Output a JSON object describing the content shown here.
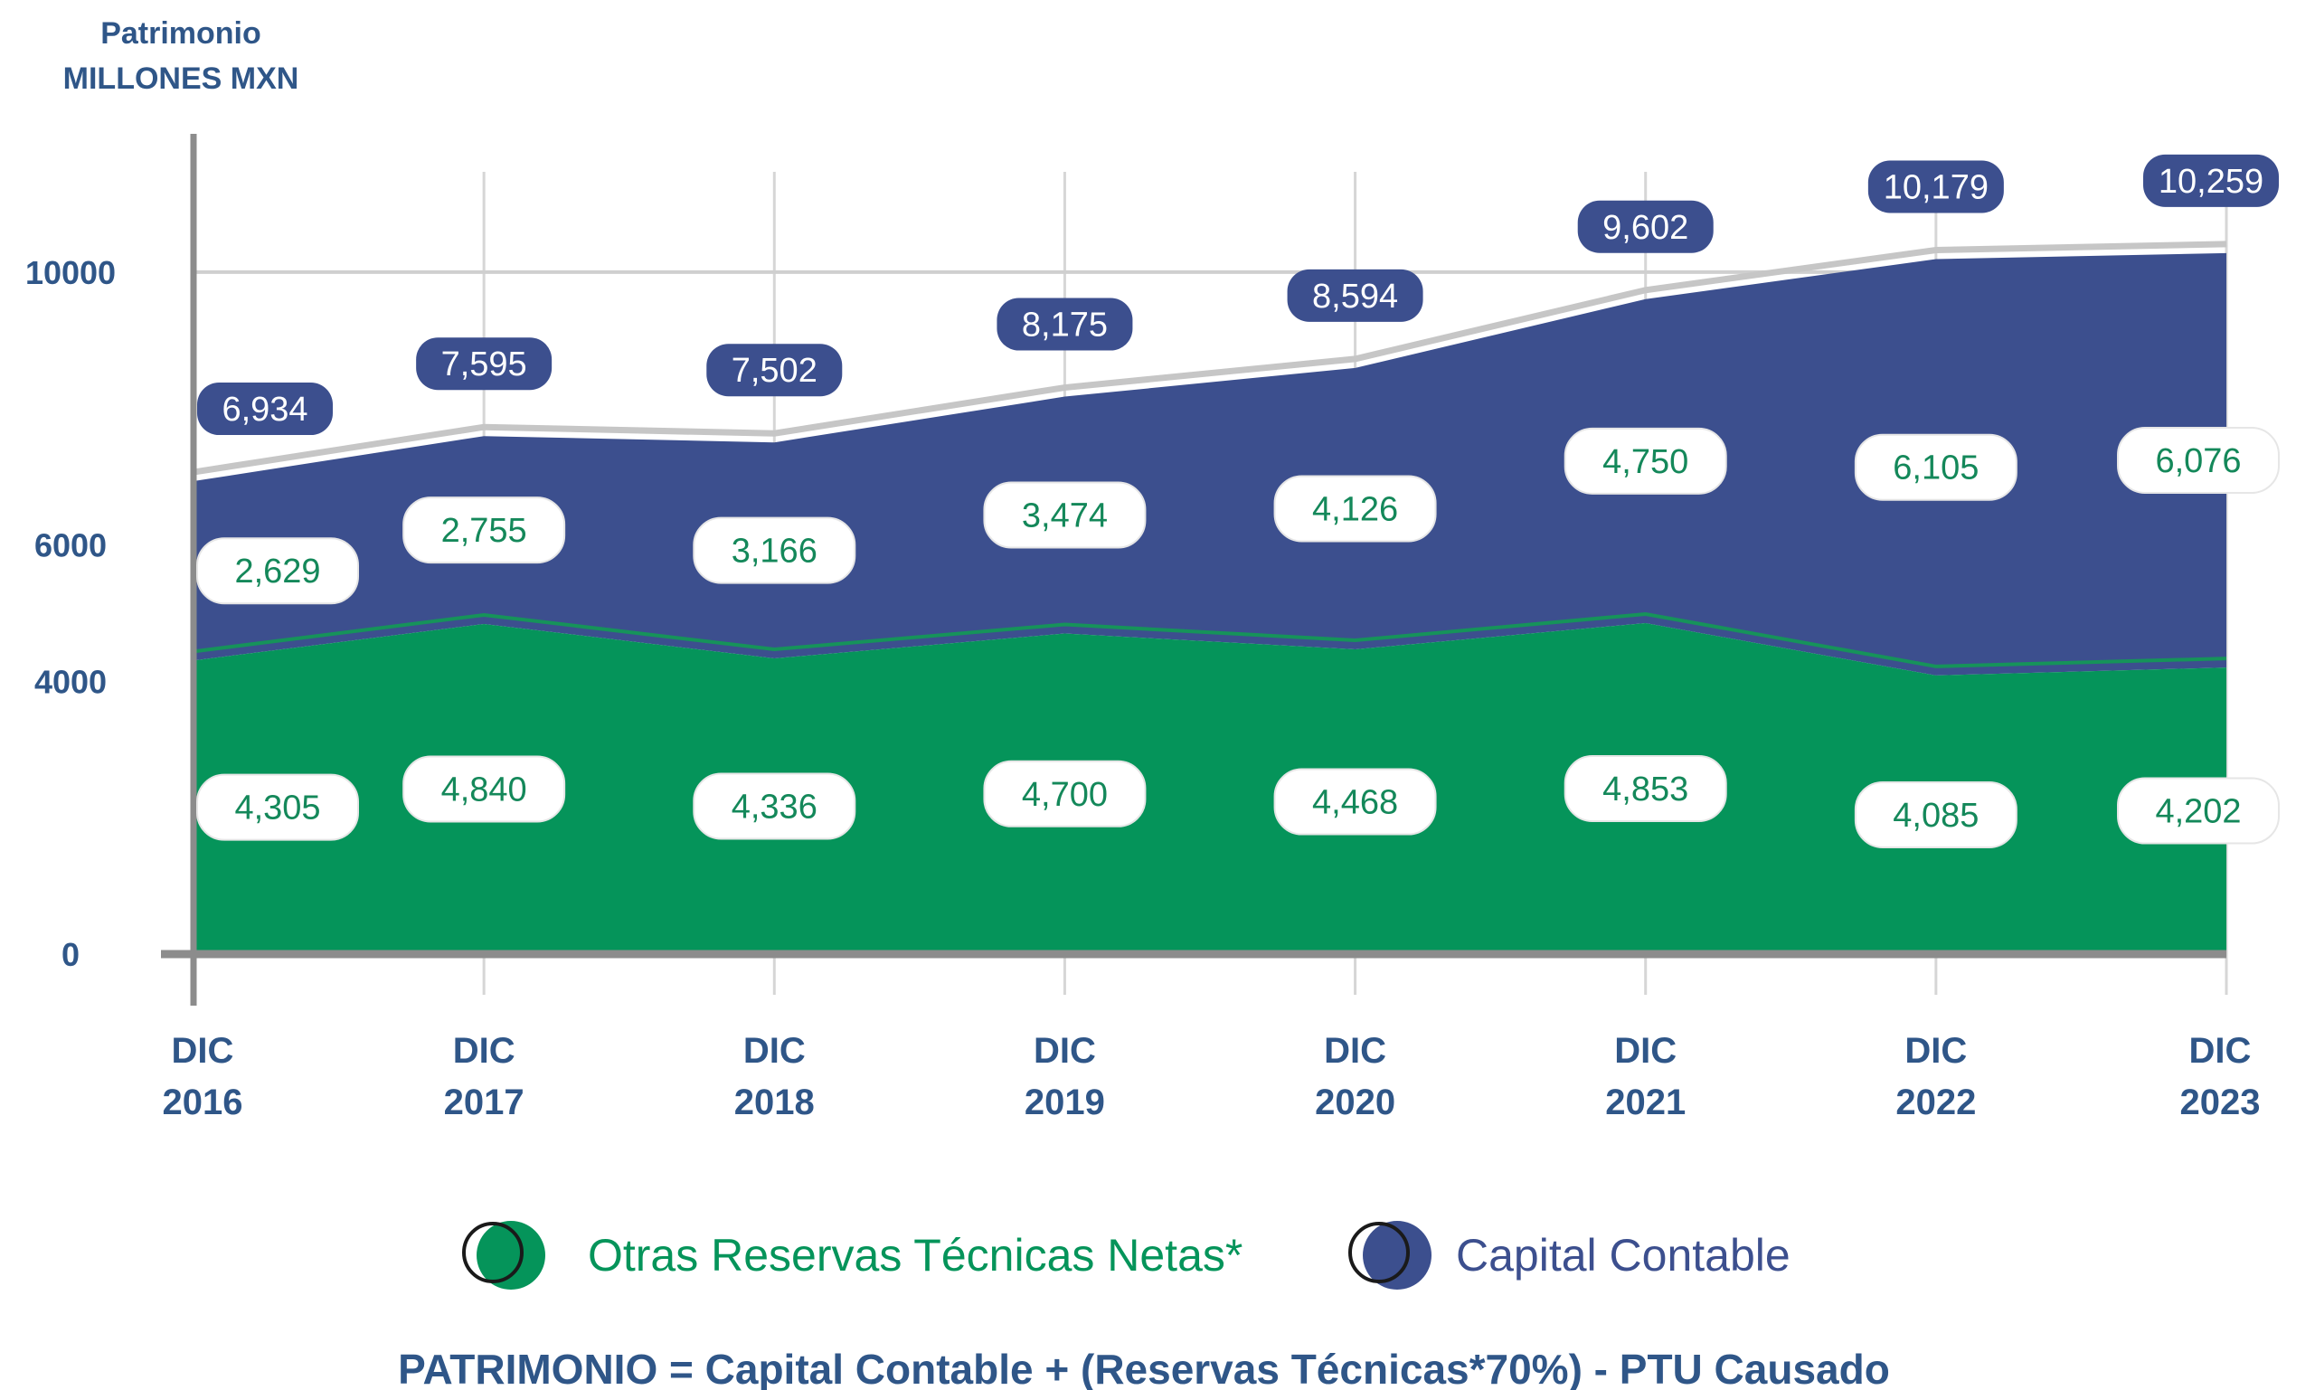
{
  "chart_data": {
    "type": "area",
    "stacked": true,
    "ylabel_lines": [
      "Patrimonio",
      "MILLONES MXN"
    ],
    "categories": [
      [
        "DIC",
        "2016"
      ],
      [
        "DIC",
        "2017"
      ],
      [
        "DIC",
        "2018"
      ],
      [
        "DIC",
        "2019"
      ],
      [
        "DIC",
        "2020"
      ],
      [
        "DIC",
        "2021"
      ],
      [
        "DIC",
        "2022"
      ],
      [
        "DIC",
        "2023"
      ]
    ],
    "yticks": [
      "0",
      "4000",
      "6000",
      "10000"
    ],
    "ylim": [
      0,
      12000
    ],
    "grid": true,
    "legend_position": "bottom",
    "series": [
      {
        "name": "Otras Reservas Técnicas Netas*",
        "color": "#05945a",
        "values": [
          4305,
          4840,
          4336,
          4700,
          4468,
          4853,
          4085,
          4202
        ],
        "labels": [
          "4,305",
          "4,840",
          "4,336",
          "4,700",
          "4,468",
          "4,853",
          "4,085",
          "4,202"
        ]
      },
      {
        "name": "Capital Contable",
        "color": "#3c4f8e",
        "values": [
          2629,
          2755,
          3166,
          3474,
          4126,
          4750,
          6105,
          6076
        ],
        "labels": [
          "2,629",
          "2,755",
          "3,166",
          "3,474",
          "4,126",
          "4,750",
          "6,105",
          "6,076"
        ]
      }
    ],
    "totals": {
      "values": [
        6934,
        7595,
        7502,
        8175,
        8594,
        9602,
        10179,
        10259
      ],
      "labels": [
        "6,934",
        "7,595",
        "7,502",
        "8,175",
        "8,594",
        "9,602",
        "10,179",
        "10,259"
      ],
      "color": "#3c4f8e"
    },
    "formula": "PATRIMONIO = Capital Contable + (Reservas Técnicas*70%) - PTU Causado"
  }
}
